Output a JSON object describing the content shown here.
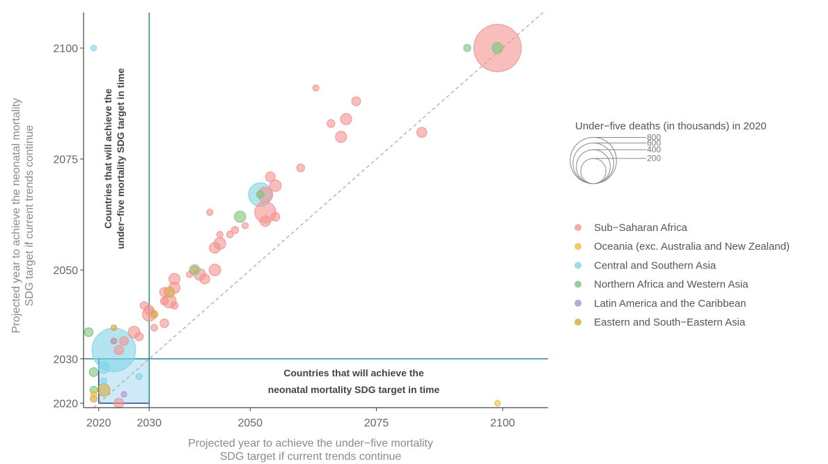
{
  "chart_data": {
    "type": "scatter",
    "xlabel": [
      "Projected year to achieve the under−five mortality",
      "SDG target if current trends continue"
    ],
    "ylabel": [
      "Projected year to achieve the neonatal mortality",
      "SDG target if current trends continue"
    ],
    "xlim": [
      2017,
      2109
    ],
    "ylim": [
      2019,
      2108
    ],
    "x_ticks": [
      2020,
      2030,
      2050,
      2075,
      2100
    ],
    "y_ticks": [
      2020,
      2030,
      2050,
      2075,
      2100
    ],
    "target_year": 2030,
    "diagonal": "dashed x=y reference line",
    "annotations": {
      "under_five": [
        "Countries that will achieve the",
        "under−five mortality SDG target in time"
      ],
      "neonatal": [
        "Countries that will achieve the",
        "neonatal mortality SDG target in time"
      ]
    },
    "size_legend": {
      "title": "Under−five deaths (in thousands) in 2020",
      "values": [
        800,
        600,
        400,
        200
      ]
    },
    "legend": [
      {
        "name": "Sub−Saharan Africa",
        "color": "#f4938f"
      },
      {
        "name": "Oceania (exc. Australia and New Zealand)",
        "color": "#f5b942"
      },
      {
        "name": "Central and Southern Asia",
        "color": "#7fd3e6"
      },
      {
        "name": "Northern Africa and Western Asia",
        "color": "#7cc47c"
      },
      {
        "name": "Latin America and the Caribbean",
        "color": "#b08fcf"
      },
      {
        "name": "Eastern and South−Eastern Asia",
        "color": "#d4a93a"
      }
    ],
    "series": [
      {
        "name": "Sub−Saharan Africa",
        "color": "#f4938f",
        "points": [
          [
            2099,
            2100,
            840
          ],
          [
            2071,
            2088,
            10
          ],
          [
            2063,
            2091,
            2
          ],
          [
            2069,
            2084,
            22
          ],
          [
            2066,
            2083,
            6
          ],
          [
            2068,
            2080,
            22
          ],
          [
            2084,
            2081,
            15
          ],
          [
            2060,
            2073,
            6
          ],
          [
            2055,
            2069,
            25
          ],
          [
            2054,
            2071,
            14
          ],
          [
            2053,
            2067,
            52
          ],
          [
            2053,
            2063,
            130
          ],
          [
            2055,
            2062,
            9
          ],
          [
            2053,
            2061,
            18
          ],
          [
            2042,
            2063,
            2
          ],
          [
            2044,
            2056,
            26
          ],
          [
            2043,
            2055,
            20
          ],
          [
            2044,
            2058,
            2
          ],
          [
            2046,
            2058,
            3
          ],
          [
            2047,
            2059,
            4
          ],
          [
            2049,
            2060,
            2
          ],
          [
            2040,
            2049,
            25
          ],
          [
            2041,
            2048,
            15
          ],
          [
            2038,
            2049,
            2
          ],
          [
            2043,
            2050,
            25
          ],
          [
            2035,
            2046,
            22
          ],
          [
            2034,
            2043,
            40
          ],
          [
            2033,
            2045,
            12
          ],
          [
            2035,
            2048,
            22
          ],
          [
            2035,
            2042,
            4
          ],
          [
            2033,
            2043,
            6
          ],
          [
            2030,
            2040,
            40
          ],
          [
            2030,
            2041,
            12
          ],
          [
            2029,
            2042,
            6
          ],
          [
            2033,
            2038,
            9
          ],
          [
            2031,
            2037,
            3
          ],
          [
            2027,
            2036,
            25
          ],
          [
            2028,
            2035,
            8
          ],
          [
            2025,
            2034,
            10
          ],
          [
            2024,
            2032,
            12
          ],
          [
            2024,
            2020,
            14
          ]
        ]
      },
      {
        "name": "Oceania (exc. Australia and New Zealand)",
        "color": "#f5b942",
        "points": [
          [
            2099,
            2020,
            1
          ],
          [
            2023,
            2034,
            2
          ],
          [
            2019,
            2022,
            2
          ]
        ]
      },
      {
        "name": "Central and Southern Asia",
        "color": "#7fd3e6",
        "points": [
          [
            2023,
            2032,
            700
          ],
          [
            2052,
            2067,
            170
          ],
          [
            2039,
            2050,
            20
          ],
          [
            2021,
            2028,
            22
          ],
          [
            2021,
            2025,
            2
          ],
          [
            2028,
            2026,
            2
          ],
          [
            2019,
            2100,
            1
          ]
        ]
      },
      {
        "name": "Northern Africa and Western Asia",
        "color": "#7cc47c",
        "points": [
          [
            2099,
            2100,
            20
          ],
          [
            2093,
            2100,
            4
          ],
          [
            2052,
            2067,
            5
          ],
          [
            2048,
            2062,
            22
          ],
          [
            2018,
            2036,
            10
          ],
          [
            2019,
            2027,
            10
          ],
          [
            2019,
            2023,
            4
          ]
        ]
      },
      {
        "name": "Latin America and the Caribbean",
        "color": "#b08fcf",
        "points": [
          [
            2023,
            2034,
            1
          ],
          [
            2025,
            2022,
            1
          ]
        ]
      },
      {
        "name": "Eastern and South−Eastern Asia",
        "color": "#d4a93a",
        "points": [
          [
            2034,
            2045,
            18
          ],
          [
            2031,
            2040,
            4
          ],
          [
            2039,
            2050,
            8
          ],
          [
            2021,
            2023,
            30
          ],
          [
            2019,
            2021,
            3
          ],
          [
            2023,
            2037,
            1
          ]
        ]
      }
    ]
  }
}
